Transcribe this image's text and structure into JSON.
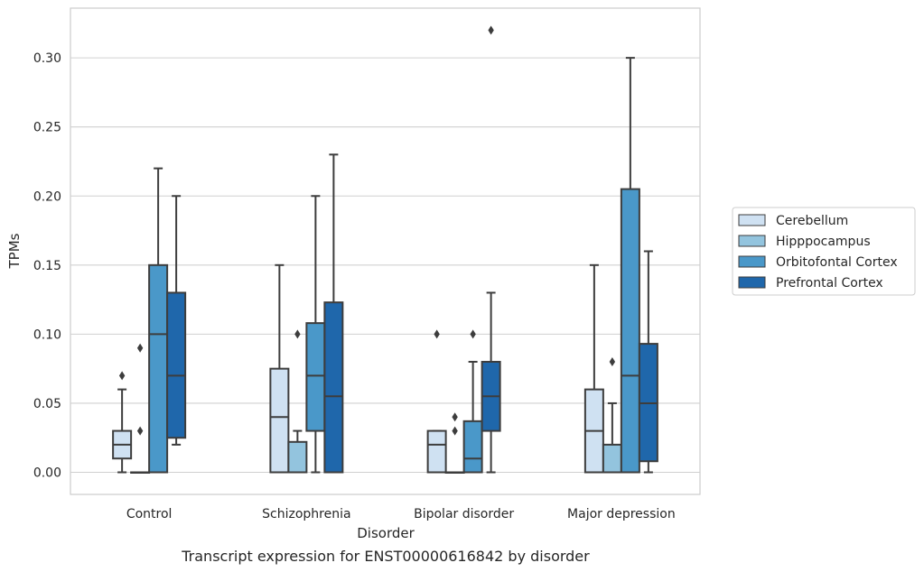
{
  "chart_data": {
    "type": "box",
    "title": "",
    "caption": "Transcript expression for ENST00000616842 by disorder",
    "xlabel": "Disorder",
    "ylabel": "TPMs",
    "ylim": [
      -0.016,
      0.336
    ],
    "yticks": [
      "0.00",
      "0.05",
      "0.10",
      "0.15",
      "0.20",
      "0.25",
      "0.30"
    ],
    "ytick_values": [
      0,
      0.05,
      0.1,
      0.15,
      0.2,
      0.25,
      0.3
    ],
    "grid": true,
    "legend_position": "right",
    "categories": [
      "Control",
      "Schizophrenia",
      "Bipolar disorder",
      "Major depression"
    ],
    "series": [
      {
        "name": "Cerebellum",
        "color": "#cfe1f2",
        "boxes": [
          {
            "whisker_low": 0.0,
            "q1": 0.01,
            "median": 0.02,
            "q3": 0.03,
            "whisker_high": 0.06,
            "outliers": [
              0.07
            ]
          },
          {
            "whisker_low": 0.0,
            "q1": 0.0,
            "median": 0.04,
            "q3": 0.075,
            "whisker_high": 0.15,
            "outliers": []
          },
          {
            "whisker_low": 0.0,
            "q1": 0.0,
            "median": 0.02,
            "q3": 0.03,
            "whisker_high": 0.03,
            "outliers": [
              0.1
            ]
          },
          {
            "whisker_low": 0.0,
            "q1": 0.0,
            "median": 0.03,
            "q3": 0.06,
            "whisker_high": 0.15,
            "outliers": []
          }
        ]
      },
      {
        "name": "Hipppocampus",
        "color": "#93c4de",
        "boxes": [
          {
            "whisker_low": 0.0,
            "q1": 0.0,
            "median": 0.0,
            "q3": 0.0,
            "whisker_high": 0.0,
            "outliers": [
              0.03,
              0.09
            ]
          },
          {
            "whisker_low": 0.0,
            "q1": 0.0,
            "median": 0.0,
            "q3": 0.022,
            "whisker_high": 0.03,
            "outliers": [
              0.1
            ]
          },
          {
            "whisker_low": 0.0,
            "q1": 0.0,
            "median": 0.0,
            "q3": 0.0,
            "whisker_high": 0.0,
            "outliers": [
              0.03,
              0.04
            ]
          },
          {
            "whisker_low": 0.0,
            "q1": 0.0,
            "median": 0.0,
            "q3": 0.02,
            "whisker_high": 0.05,
            "outliers": [
              0.08
            ]
          }
        ]
      },
      {
        "name": "Orbitofontal Cortex",
        "color": "#4a98c9",
        "boxes": [
          {
            "whisker_low": 0.0,
            "q1": 0.0,
            "median": 0.1,
            "q3": 0.15,
            "whisker_high": 0.22,
            "outliers": []
          },
          {
            "whisker_low": 0.0,
            "q1": 0.03,
            "median": 0.07,
            "q3": 0.108,
            "whisker_high": 0.2,
            "outliers": []
          },
          {
            "whisker_low": 0.0,
            "q1": 0.0,
            "median": 0.01,
            "q3": 0.037,
            "whisker_high": 0.08,
            "outliers": [
              0.1
            ]
          },
          {
            "whisker_low": 0.0,
            "q1": 0.0,
            "median": 0.07,
            "q3": 0.205,
            "whisker_high": 0.3,
            "outliers": []
          }
        ]
      },
      {
        "name": "Prefrontal Cortex",
        "color": "#1f67ab",
        "boxes": [
          {
            "whisker_low": 0.02,
            "q1": 0.025,
            "median": 0.07,
            "q3": 0.13,
            "whisker_high": 0.2,
            "outliers": []
          },
          {
            "whisker_low": 0.0,
            "q1": 0.0,
            "median": 0.055,
            "q3": 0.123,
            "whisker_high": 0.23,
            "outliers": []
          },
          {
            "whisker_low": 0.0,
            "q1": 0.03,
            "median": 0.055,
            "q3": 0.08,
            "whisker_high": 0.13,
            "outliers": [
              0.32
            ]
          },
          {
            "whisker_low": 0.0,
            "q1": 0.008,
            "median": 0.05,
            "q3": 0.093,
            "whisker_high": 0.16,
            "outliers": []
          }
        ]
      }
    ]
  }
}
